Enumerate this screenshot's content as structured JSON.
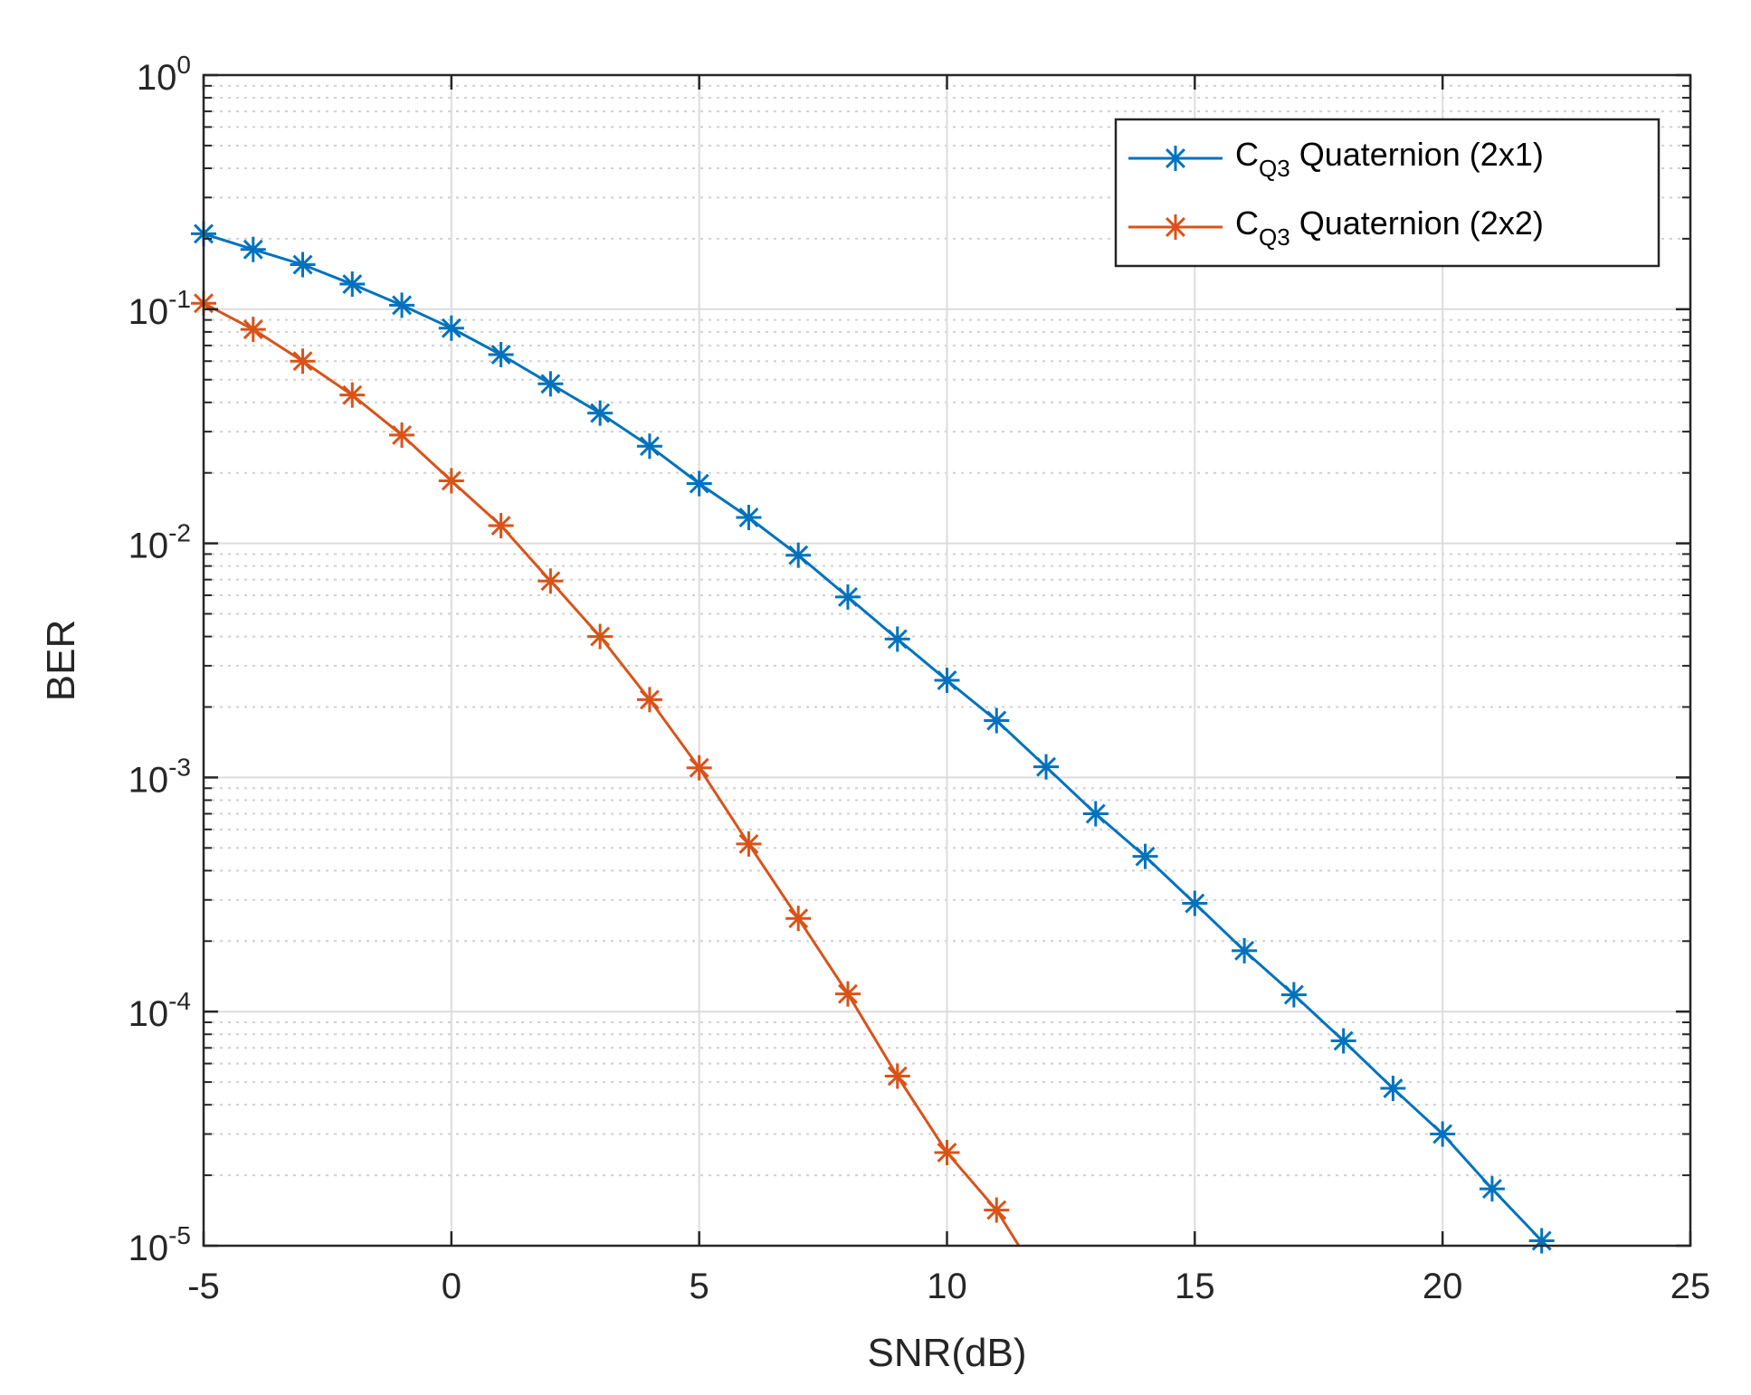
{
  "chart_data": {
    "type": "line",
    "title": "",
    "xlabel": "SNR(dB)",
    "ylabel": "BER",
    "xscale": "linear",
    "yscale": "log",
    "xlim": [
      -5,
      25
    ],
    "ylim": [
      1e-05,
      1
    ],
    "xticks": [
      -5,
      0,
      5,
      10,
      15,
      20,
      25
    ],
    "xtick_labels": [
      "-5",
      "0",
      "5",
      "10",
      "15",
      "20",
      "25"
    ],
    "yticks": [
      {
        "value": 1e-05,
        "base": "10",
        "exp": "-5"
      },
      {
        "value": 0.0001,
        "base": "10",
        "exp": "-4"
      },
      {
        "value": 0.001,
        "base": "10",
        "exp": "-3"
      },
      {
        "value": 0.01,
        "base": "10",
        "exp": "-2"
      },
      {
        "value": 0.1,
        "base": "10",
        "exp": "-1"
      },
      {
        "value": 1,
        "base": "10",
        "exp": "0"
      }
    ],
    "grid": true,
    "minor_grid": true,
    "legend_position": "top-right",
    "series": [
      {
        "name": "C_Q3 Quaternion (2x1)",
        "label_main": "C",
        "label_sub": "Q3",
        "label_rest": " Quaternion (2x1)",
        "color": "#0072BD",
        "marker": "asterisk",
        "x": [
          -5,
          -4,
          -3,
          -2,
          -1,
          0,
          1,
          2,
          3,
          4,
          5,
          6,
          7,
          8,
          9,
          10,
          11,
          12,
          13,
          14,
          15,
          16,
          17,
          18,
          19,
          20,
          21,
          22
        ],
        "y": [
          0.21,
          0.18,
          0.155,
          0.128,
          0.104,
          0.083,
          0.064,
          0.048,
          0.036,
          0.026,
          0.018,
          0.0129,
          0.0089,
          0.0059,
          0.0039,
          0.0026,
          0.00175,
          0.00111,
          0.0007,
          0.00046,
          0.00029,
          0.000182,
          0.000118,
          7.5e-05,
          4.7e-05,
          3e-05,
          1.75e-05,
          1.05e-05
        ]
      },
      {
        "name": "C_Q3 Quaternion (2x2)",
        "label_main": "C",
        "label_sub": "Q3",
        "label_rest": " Quaternion (2x2)",
        "color": "#D95319",
        "marker": "asterisk",
        "x": [
          -5,
          -4,
          -3,
          -2,
          -1,
          0,
          1,
          2,
          3,
          4,
          5,
          6,
          7,
          8,
          9,
          10,
          11
        ],
        "y": [
          0.106,
          0.082,
          0.06,
          0.043,
          0.029,
          0.0185,
          0.0119,
          0.0069,
          0.004,
          0.00215,
          0.0011,
          0.00052,
          0.00025,
          0.000119,
          5.3e-05,
          2.5e-05,
          1.42e-05
        ],
        "line_end": {
          "x": 11.45,
          "y": 1e-05
        }
      }
    ]
  }
}
